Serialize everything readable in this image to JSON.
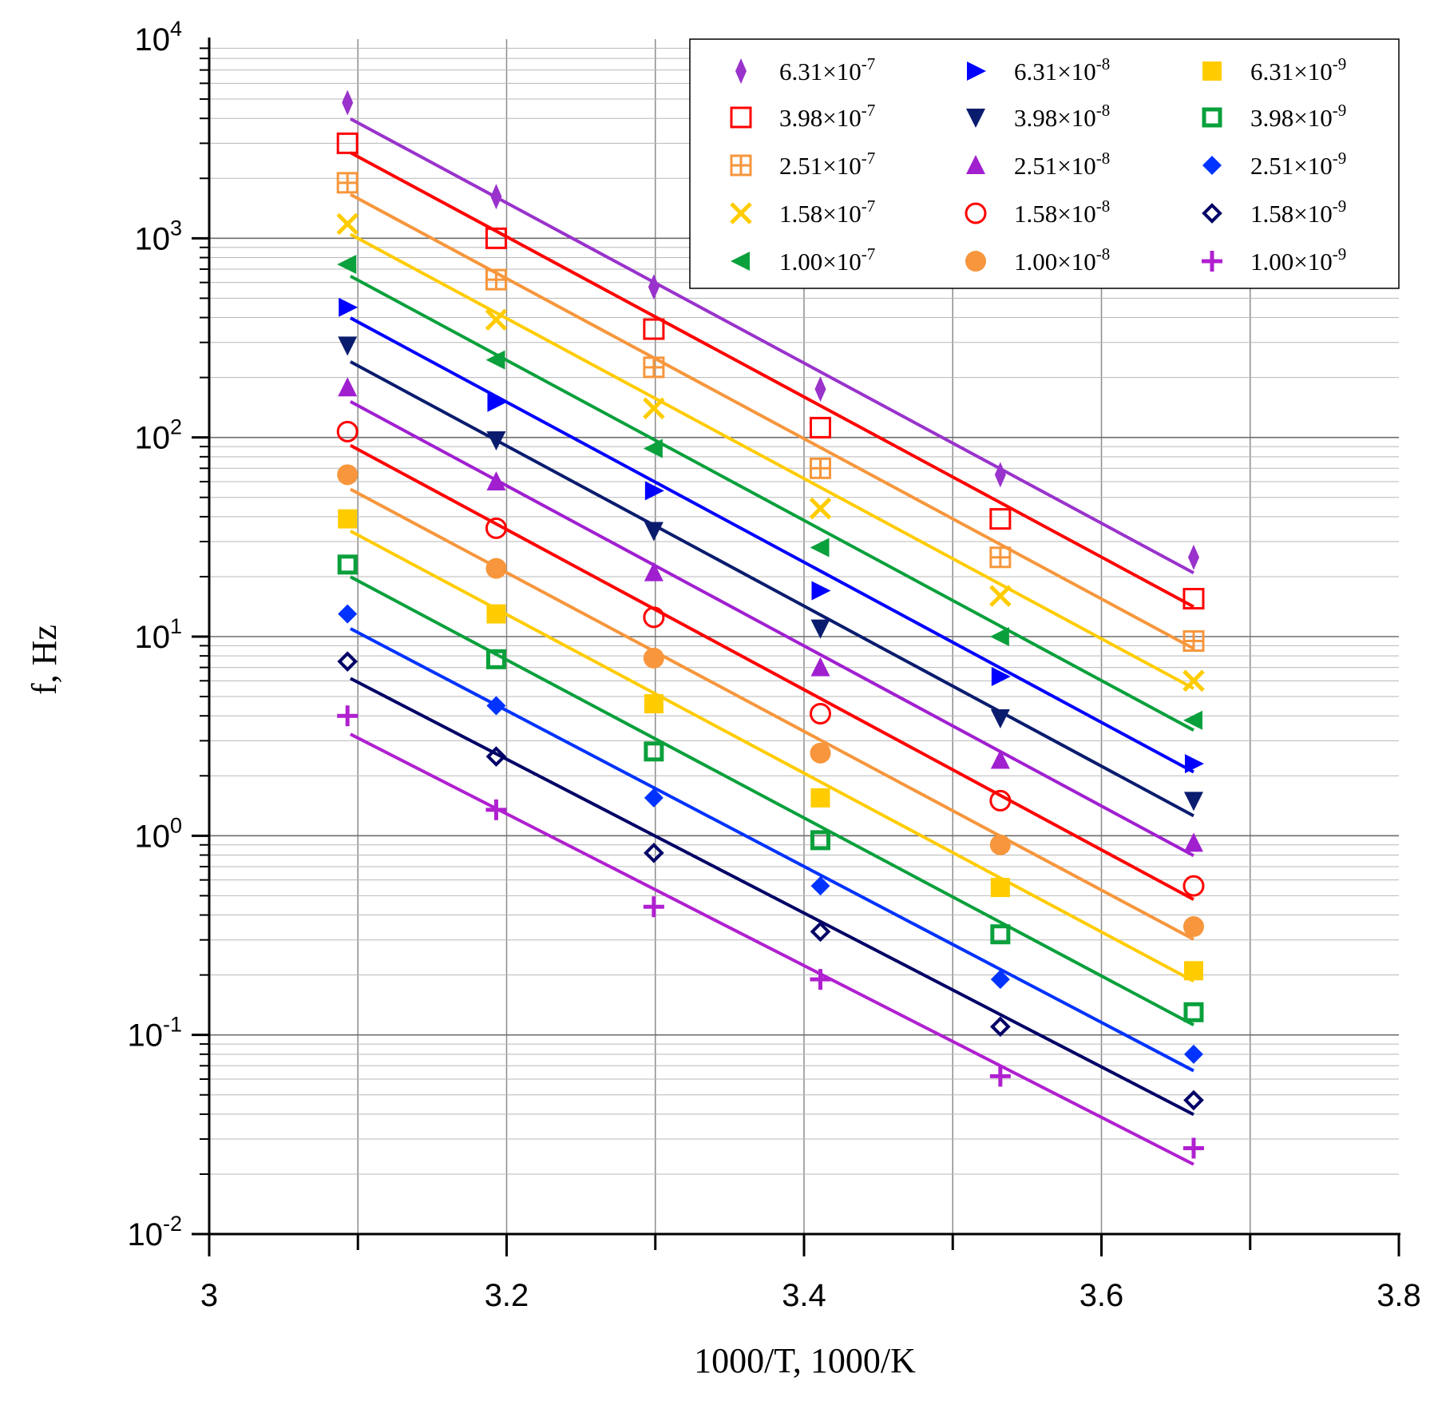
{
  "chart_data": {
    "type": "scatter",
    "xlabel": "1000/T, 1000/K",
    "ylabel": "f, Hz",
    "xlim": [
      3.0,
      3.8
    ],
    "ylim": [
      0.01,
      10000
    ],
    "yscale": "log",
    "grid": true,
    "legend_position": "top-right",
    "x_ticks": [
      "3",
      "3.2",
      "3.4",
      "3.6",
      "3.8"
    ],
    "y_ticks": [
      {
        "base": "10",
        "exp": "-2"
      },
      {
        "base": "10",
        "exp": "-1"
      },
      {
        "base": "10",
        "exp": "0"
      },
      {
        "base": "10",
        "exp": "1"
      },
      {
        "base": "10",
        "exp": "2"
      },
      {
        "base": "10",
        "exp": "3"
      },
      {
        "base": "10",
        "exp": "4"
      }
    ],
    "x": [
      3.093,
      3.193,
      3.299,
      3.411,
      3.532,
      3.662
    ],
    "series": [
      {
        "label_mantissa": "6.31×10",
        "label_exp": "-7",
        "color": "#9933cc",
        "marker": "thin-diamond",
        "values": [
          4800,
          1620,
          570,
          175,
          65,
          25
        ],
        "fit": [
          3.6,
          1.32
        ]
      },
      {
        "label_mantissa": "3.98×10",
        "label_exp": "-7",
        "color": "#ff0000",
        "marker": "open-square",
        "values": [
          3000,
          1000,
          350,
          112,
          39,
          15.5
        ],
        "fit": [
          3.43,
          1.15
        ]
      },
      {
        "label_mantissa": "2.51×10",
        "label_exp": "-7",
        "color": "#f7963c",
        "marker": "square-plus",
        "values": [
          1900,
          620,
          225,
          70,
          25,
          9.5
        ],
        "fit": [
          3.22,
          0.94
        ]
      },
      {
        "label_mantissa": "1.58×10",
        "label_exp": "-7",
        "color": "#ffcc00",
        "marker": "x",
        "values": [
          1180,
          390,
          140,
          44,
          16,
          6.0
        ],
        "fit": [
          3.02,
          0.74
        ]
      },
      {
        "label_mantissa": "1.00×10",
        "label_exp": "-7",
        "color": "#0aa03c",
        "marker": "left-triangle",
        "values": [
          740,
          245,
          88,
          28,
          10,
          3.8
        ],
        "fit": [
          2.81,
          0.53
        ]
      },
      {
        "label_mantissa": "6.31×10",
        "label_exp": "-8",
        "color": "#0000ff",
        "marker": "right-triangle",
        "values": [
          450,
          150,
          54,
          17,
          6.3,
          2.3
        ],
        "fit": [
          2.6,
          0.32
        ]
      },
      {
        "label_mantissa": "3.98×10",
        "label_exp": "-8",
        "color": "#0a1c6e",
        "marker": "down-triangle",
        "values": [
          290,
          97,
          34,
          11,
          3.9,
          1.5
        ],
        "fit": [
          2.38,
          0.1
        ]
      },
      {
        "label_mantissa": "2.51×10",
        "label_exp": "-8",
        "color": "#a020d0",
        "marker": "up-triangle",
        "values": [
          178,
          60,
          21,
          7.0,
          2.4,
          0.92
        ],
        "fit": [
          2.18,
          -0.1
        ]
      },
      {
        "label_mantissa": "1.58×10",
        "label_exp": "-8",
        "color": "#ff0000",
        "marker": "open-circle",
        "values": [
          107,
          35,
          12.5,
          4.1,
          1.5,
          0.56
        ],
        "fit": [
          1.96,
          -0.32
        ]
      },
      {
        "label_mantissa": "1.00×10",
        "label_exp": "-8",
        "color": "#f7963c",
        "marker": "filled-circle",
        "values": [
          65,
          22,
          7.8,
          2.6,
          0.9,
          0.35
        ],
        "fit": [
          1.74,
          -0.52
        ]
      },
      {
        "label_mantissa": "6.31×10",
        "label_exp": "-9",
        "color": "#ffcc00",
        "marker": "filled-square",
        "values": [
          39,
          13,
          4.6,
          1.55,
          0.55,
          0.21
        ],
        "fit": [
          1.53,
          -0.73
        ]
      },
      {
        "label_mantissa": "3.98×10",
        "label_exp": "-9",
        "color": "#0aa03c",
        "marker": "open-square-thick",
        "values": [
          23,
          7.7,
          2.65,
          0.95,
          0.32,
          0.13
        ],
        "fit": [
          1.3,
          -0.95
        ]
      },
      {
        "label_mantissa": "2.51×10",
        "label_exp": "-9",
        "color": "#0033ff",
        "marker": "filled-diamond",
        "values": [
          13,
          4.5,
          1.55,
          0.56,
          0.19,
          0.08
        ],
        "fit": [
          1.04,
          -1.18
        ]
      },
      {
        "label_mantissa": "1.58×10",
        "label_exp": "-9",
        "color": "#000066",
        "marker": "open-diamond",
        "values": [
          7.5,
          2.5,
          0.82,
          0.33,
          0.11,
          0.047
        ],
        "fit": [
          0.79,
          -1.4
        ]
      },
      {
        "label_mantissa": "1.00×10",
        "label_exp": "-9",
        "color": "#b020d0",
        "marker": "plus",
        "values": [
          4.0,
          1.35,
          0.44,
          0.19,
          0.062,
          0.027
        ],
        "fit": [
          0.51,
          -1.65
        ]
      }
    ]
  }
}
